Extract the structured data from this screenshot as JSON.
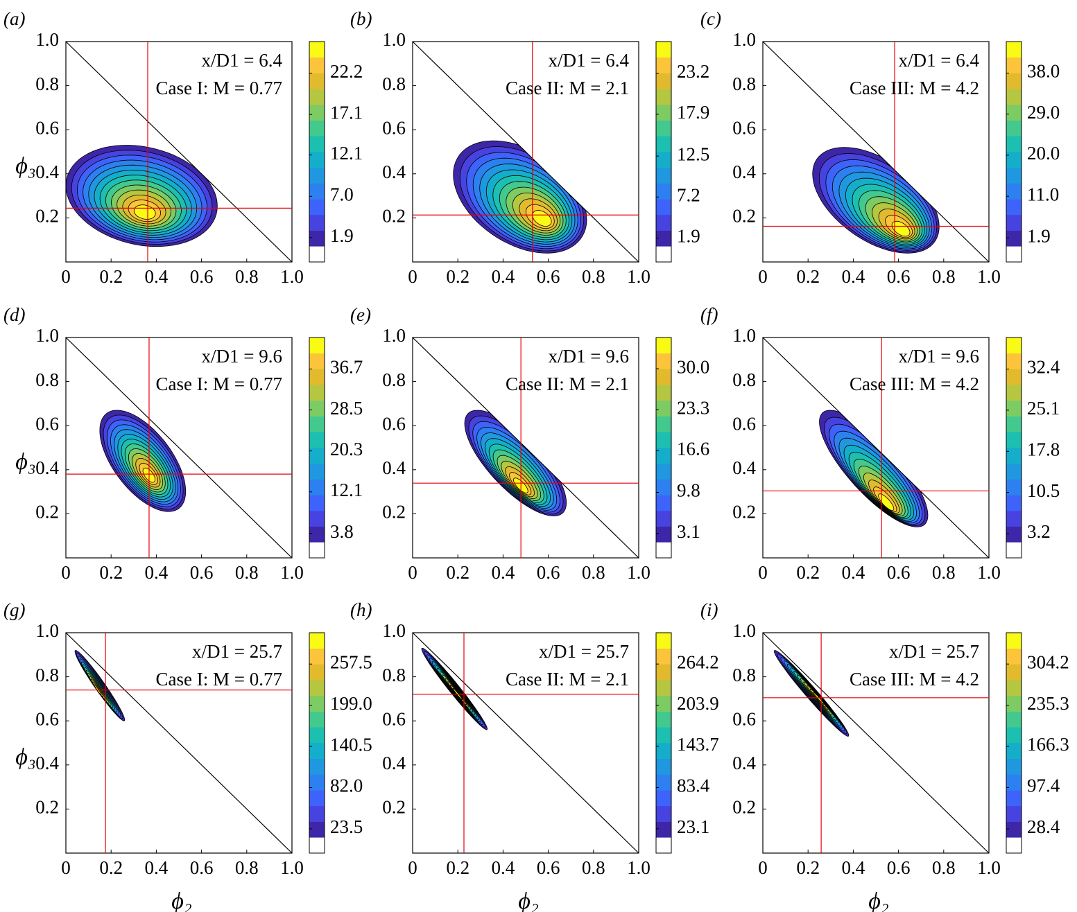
{
  "style": {
    "colormap": [
      "#3e26a8",
      "#4743e0",
      "#3e63fa",
      "#2d80f0",
      "#1f98e0",
      "#14aecb",
      "#1cbfb0",
      "#43c88d",
      "#7dcb63",
      "#b5c640",
      "#e1ba2e",
      "#fbc43a",
      "#f9fb15"
    ],
    "mean_color": "#e8000b"
  },
  "chart_data": [
    {
      "type": "contour",
      "panel": "(a)",
      "annotation": [
        "x/D1 = 6.4",
        "Case I: M = 0.77"
      ],
      "ylabel": "ϕ₃",
      "xlim": [
        0,
        1
      ],
      "ylim": [
        0,
        1
      ],
      "xticks": [
        0,
        0.2,
        0.4,
        0.6,
        0.8,
        {
          "value": 1,
          "label": "1.0"
        }
      ],
      "yticks": [
        0.2,
        0.4,
        0.6,
        0.8,
        {
          "value": 1,
          "label": "1.0"
        }
      ],
      "mean": {
        "x": 0.362,
        "y": 0.244
      },
      "peak": {
        "x": 0.35,
        "y": 0.22
      },
      "support": {
        "x": [
          0.0,
          0.67
        ],
        "y": [
          0.07,
          0.53
        ]
      },
      "correlation": -0.2,
      "colorbar": {
        "clim": [
          -1.1,
          26.1
        ],
        "ticks": [
          1.9,
          {
            "value": 7,
            "label": "7.0"
          },
          12.1,
          17.1,
          22.2
        ]
      }
    },
    {
      "type": "contour",
      "panel": "(b)",
      "annotation": [
        "x/D1 = 6.4",
        "Case II: M = 2.1"
      ],
      "xlim": [
        0,
        1
      ],
      "ylim": [
        0,
        1
      ],
      "xticks": [
        0,
        0.2,
        0.4,
        0.6,
        0.8,
        {
          "value": 1,
          "label": "1.0"
        }
      ],
      "yticks": [
        0.2,
        0.4,
        0.6,
        0.8,
        {
          "value": 1,
          "label": "1.0"
        }
      ],
      "mean": {
        "x": 0.53,
        "y": 0.213
      },
      "peak": {
        "x": 0.58,
        "y": 0.19
      },
      "support": {
        "x": [
          0.18,
          0.77
        ],
        "y": [
          0.04,
          0.55
        ]
      },
      "correlation": -0.4,
      "colorbar": {
        "clim": [
          -1.2,
          27.3
        ],
        "ticks": [
          1.9,
          7.2,
          12.5,
          17.9,
          23.2
        ]
      }
    },
    {
      "type": "contour",
      "panel": "(c)",
      "annotation": [
        "x/D1 = 6.4",
        "Case III: M = 4.2"
      ],
      "xlim": [
        0,
        1
      ],
      "ylim": [
        0,
        1
      ],
      "xticks": [
        0,
        0.2,
        0.4,
        0.6,
        0.8,
        {
          "value": 1,
          "label": "1.0"
        }
      ],
      "yticks": [
        0.2,
        0.4,
        0.6,
        0.8,
        {
          "value": 1,
          "label": "1.0"
        }
      ],
      "mean": {
        "x": 0.583,
        "y": 0.162
      },
      "peak": {
        "x": 0.62,
        "y": 0.14
      },
      "support": {
        "x": [
          0.22,
          0.78
        ],
        "y": [
          0.04,
          0.52
        ]
      },
      "correlation": -0.5,
      "colorbar": {
        "clim": [
          -3.4,
          44.9
        ],
        "ticks": [
          1.9,
          {
            "value": 11,
            "label": "11.0"
          },
          {
            "value": 20,
            "label": "20.0"
          },
          {
            "value": 29,
            "label": "29.0"
          },
          {
            "value": 38,
            "label": "38.0"
          }
        ]
      }
    },
    {
      "type": "contour",
      "panel": "(d)",
      "annotation": [
        "x/D1 = 9.6",
        "Case I: M = 0.77"
      ],
      "ylabel": "ϕ₃",
      "xlim": [
        0,
        1
      ],
      "ylim": [
        0,
        1
      ],
      "xticks": [
        0,
        0.2,
        0.4,
        0.6,
        0.8,
        {
          "value": 1,
          "label": "1.0"
        }
      ],
      "yticks": [
        0.2,
        0.4,
        0.6,
        0.8,
        {
          "value": 1,
          "label": "1.0"
        }
      ],
      "mean": {
        "x": 0.368,
        "y": 0.38
      },
      "peak": {
        "x": 0.37,
        "y": 0.37
      },
      "support": {
        "x": [
          0.15,
          0.53
        ],
        "y": [
          0.21,
          0.67
        ]
      },
      "correlation": -0.6,
      "colorbar": {
        "clim": [
          -1.1,
          43.0
        ],
        "ticks": [
          3.8,
          12.1,
          20.3,
          28.5,
          36.7
        ]
      }
    },
    {
      "type": "contour",
      "panel": "(e)",
      "annotation": [
        "x/D1 = 9.6",
        "Case II: M = 2.1"
      ],
      "xlim": [
        0,
        1
      ],
      "ylim": [
        0,
        1
      ],
      "xticks": [
        0,
        0.2,
        0.4,
        0.6,
        0.8,
        {
          "value": 1,
          "label": "1.0"
        }
      ],
      "yticks": [
        0.2,
        0.4,
        0.6,
        0.8,
        {
          "value": 1,
          "label": "1.0"
        }
      ],
      "mean": {
        "x": 0.479,
        "y": 0.339
      },
      "peak": {
        "x": 0.48,
        "y": 0.32
      },
      "support": {
        "x": [
          0.23,
          0.68
        ],
        "y": [
          0.19,
          0.67
        ]
      },
      "correlation": -0.75,
      "colorbar": {
        "clim": [
          -0.9,
          35.1
        ],
        "ticks": [
          3.1,
          9.8,
          16.6,
          23.3,
          {
            "value": 30,
            "label": "30.0"
          }
        ]
      }
    },
    {
      "type": "contour",
      "panel": "(f)",
      "annotation": [
        "x/D1 = 9.6",
        "Case III: M = 4.2"
      ],
      "xlim": [
        0,
        1
      ],
      "ylim": [
        0,
        1
      ],
      "xticks": [
        0,
        0.2,
        0.4,
        0.6,
        0.8,
        {
          "value": 1,
          "label": "1.0"
        }
      ],
      "yticks": [
        0.2,
        0.4,
        0.6,
        0.8,
        {
          "value": 1,
          "label": "1.0"
        }
      ],
      "mean": {
        "x": 0.525,
        "y": 0.304
      },
      "peak": {
        "x": 0.55,
        "y": 0.24
      },
      "support": {
        "x": [
          0.25,
          0.73
        ],
        "y": [
          0.14,
          0.67
        ]
      },
      "correlation": -0.8,
      "colorbar": {
        "clim": [
          -1.1,
          38.0
        ],
        "ticks": [
          3.2,
          10.5,
          17.8,
          25.1,
          32.4
        ]
      }
    },
    {
      "type": "contour",
      "panel": "(g)",
      "annotation": [
        "x/D1 = 25.7",
        "Case I: M = 0.77"
      ],
      "ylabel": "ϕ₃",
      "xlabel": "ϕ₂",
      "xlim": [
        0,
        1
      ],
      "ylim": [
        0,
        1
      ],
      "xticks": [
        0,
        0.2,
        0.4,
        0.6,
        0.8,
        {
          "value": 1,
          "label": "1.0"
        }
      ],
      "yticks": [
        0.2,
        0.4,
        0.6,
        0.8,
        {
          "value": 1,
          "label": "1.0"
        }
      ],
      "mean": {
        "x": 0.175,
        "y": 0.74
      },
      "peak": {
        "x": 0.14,
        "y": 0.74
      },
      "support": {
        "x": [
          0.04,
          0.26
        ],
        "y": [
          0.6,
          0.92
        ]
      },
      "correlation": -0.97,
      "colorbar": {
        "clim": [
          -11.0,
          302.0
        ],
        "ticks": [
          23.5,
          {
            "value": 82,
            "label": "82.0"
          },
          140.5,
          {
            "value": 199,
            "label": "199.0"
          },
          257.5
        ]
      }
    },
    {
      "type": "contour",
      "panel": "(h)",
      "annotation": [
        "x/D1 = 25.7",
        "Case II: M = 2.1"
      ],
      "xlabel": "ϕ₂",
      "xlim": [
        0,
        1
      ],
      "ylim": [
        0,
        1
      ],
      "xticks": [
        0,
        0.2,
        0.4,
        0.6,
        0.8,
        {
          "value": 1,
          "label": "1.0"
        }
      ],
      "yticks": [
        0.2,
        0.4,
        0.6,
        0.8,
        {
          "value": 1,
          "label": "1.0"
        }
      ],
      "mean": {
        "x": 0.227,
        "y": 0.721
      },
      "peak": {
        "x": 0.2,
        "y": 0.72
      },
      "support": {
        "x": [
          0.04,
          0.33
        ],
        "y": [
          0.56,
          0.93
        ]
      },
      "correlation": -0.98,
      "colorbar": {
        "clim": [
          -12.5,
          310.0
        ],
        "ticks": [
          23.1,
          83.4,
          143.7,
          203.9,
          264.2
        ]
      }
    },
    {
      "type": "contour",
      "panel": "(i)",
      "annotation": [
        "x/D1 = 25.7",
        "Case III: M = 4.2"
      ],
      "xlabel": "ϕ₂",
      "xlim": [
        0,
        1
      ],
      "ylim": [
        0,
        1
      ],
      "xticks": [
        0,
        0.2,
        0.4,
        0.6,
        0.8,
        {
          "value": 1,
          "label": "1.0"
        }
      ],
      "yticks": [
        0.2,
        0.4,
        0.6,
        0.8,
        {
          "value": 1,
          "label": "1.0"
        }
      ],
      "mean": {
        "x": 0.258,
        "y": 0.705
      },
      "peak": {
        "x": 0.25,
        "y": 0.7
      },
      "support": {
        "x": [
          0.05,
          0.38
        ],
        "y": [
          0.53,
          0.92
        ]
      },
      "correlation": -0.98,
      "colorbar": {
        "clim": [
          -12.3,
          356.6
        ],
        "ticks": [
          28.4,
          97.4,
          166.3,
          235.3,
          304.2
        ]
      }
    }
  ]
}
